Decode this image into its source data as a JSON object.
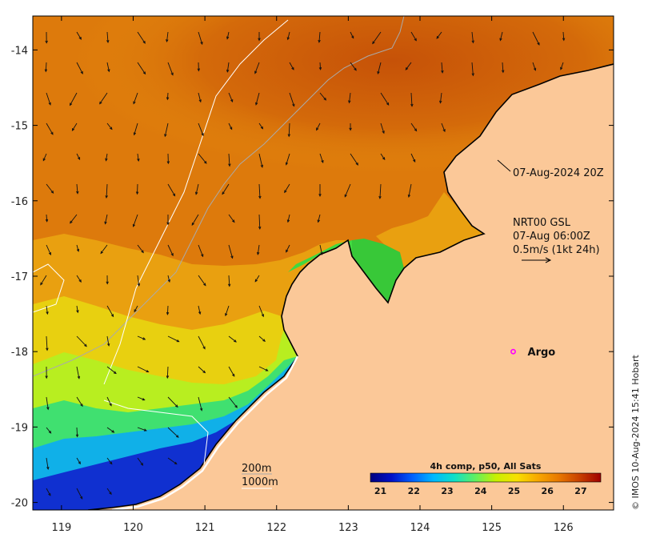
{
  "map": {
    "x_ticks": [
      "119",
      "120",
      "121",
      "122",
      "123",
      "124",
      "125",
      "126"
    ],
    "y_ticks": [
      "-14",
      "-15",
      "-16",
      "-17",
      "-18",
      "-19",
      "-20"
    ],
    "x_range": [
      118.6,
      126.7
    ],
    "y_range": [
      -20.1,
      -13.55
    ],
    "land_color": "#fbc898",
    "coast_color": "#000000",
    "contour_color": "#ffffff"
  },
  "annotations": {
    "image_time": "07-Aug-2024 20Z",
    "current_source": "NRT00 GSL",
    "current_time": "07-Aug 06:00Z",
    "current_scale": "0.5m/s (1kt 24h)"
  },
  "argo": {
    "label": "Argo",
    "lon": 125.3,
    "lat": -18.0,
    "marker_color": "#ff00ff"
  },
  "isobaths": {
    "label_200": "200m",
    "label_1000": "1000m"
  },
  "colorbar": {
    "title": "4h comp, p50, All Sats",
    "ticks": [
      "21",
      "22",
      "23",
      "24",
      "25",
      "26",
      "27"
    ],
    "min": 20.7,
    "max": 27.6,
    "stops": [
      "#00007f",
      "#0010c8",
      "#0060ff",
      "#00b8ff",
      "#10e0c8",
      "#60f060",
      "#c8f000",
      "#f8e000",
      "#f8a800",
      "#e87800",
      "#c84000",
      "#a00000"
    ]
  },
  "credit": "© IMOS 10-Aug-2024 15:41 Hobart"
}
